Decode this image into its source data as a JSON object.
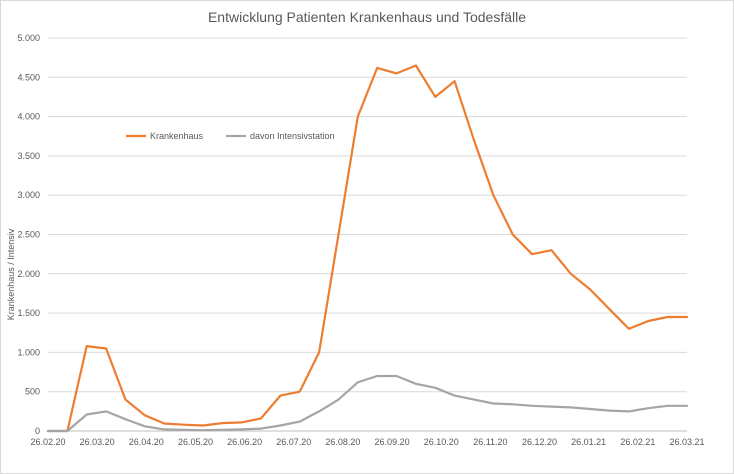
{
  "chart_data": {
    "type": "line",
    "title": "Entwicklung Patienten Krankenhaus und Todesfälle",
    "xlabel": "",
    "ylabel": "Krankenhaus / Intensiv",
    "ylim": [
      0,
      5000
    ],
    "y_ticks": [
      0,
      500,
      1000,
      1500,
      2000,
      2500,
      3000,
      3500,
      4000,
      4500,
      5000
    ],
    "y_tick_labels": [
      "0",
      "500",
      "1.000",
      "1.500",
      "2.000",
      "2.500",
      "3.000",
      "3.500",
      "4.000",
      "4.500",
      "5.000"
    ],
    "x_tick_labels": [
      "26.02.20",
      "26.03.20",
      "26.04.20",
      "26.05.20",
      "26.06.20",
      "26.07.20",
      "26.08.20",
      "26.09.20",
      "26.10.20",
      "26.11.20",
      "26.12.20",
      "26.01.21",
      "26.02.21",
      "26.03.21"
    ],
    "grid": true,
    "legend_position": "top-left",
    "series": [
      {
        "name": "Krankenhaus",
        "color": "#ED7D31",
        "values": [
          0,
          0,
          1080,
          1050,
          400,
          200,
          95,
          80,
          70,
          100,
          110,
          160,
          450,
          500,
          1000,
          2500,
          4000,
          4620,
          4550,
          4650,
          4250,
          4450,
          3700,
          3000,
          2500,
          2250,
          2300,
          2000,
          1800,
          1550,
          1300,
          1400,
          1450,
          1450
        ]
      },
      {
        "name": "davon Intensivstation",
        "color": "#A5A5A5",
        "values": [
          0,
          0,
          210,
          250,
          150,
          60,
          20,
          15,
          10,
          15,
          20,
          30,
          70,
          120,
          250,
          400,
          620,
          700,
          700,
          600,
          550,
          450,
          400,
          350,
          340,
          320,
          310,
          300,
          280,
          260,
          250,
          290,
          320,
          320
        ]
      }
    ]
  }
}
